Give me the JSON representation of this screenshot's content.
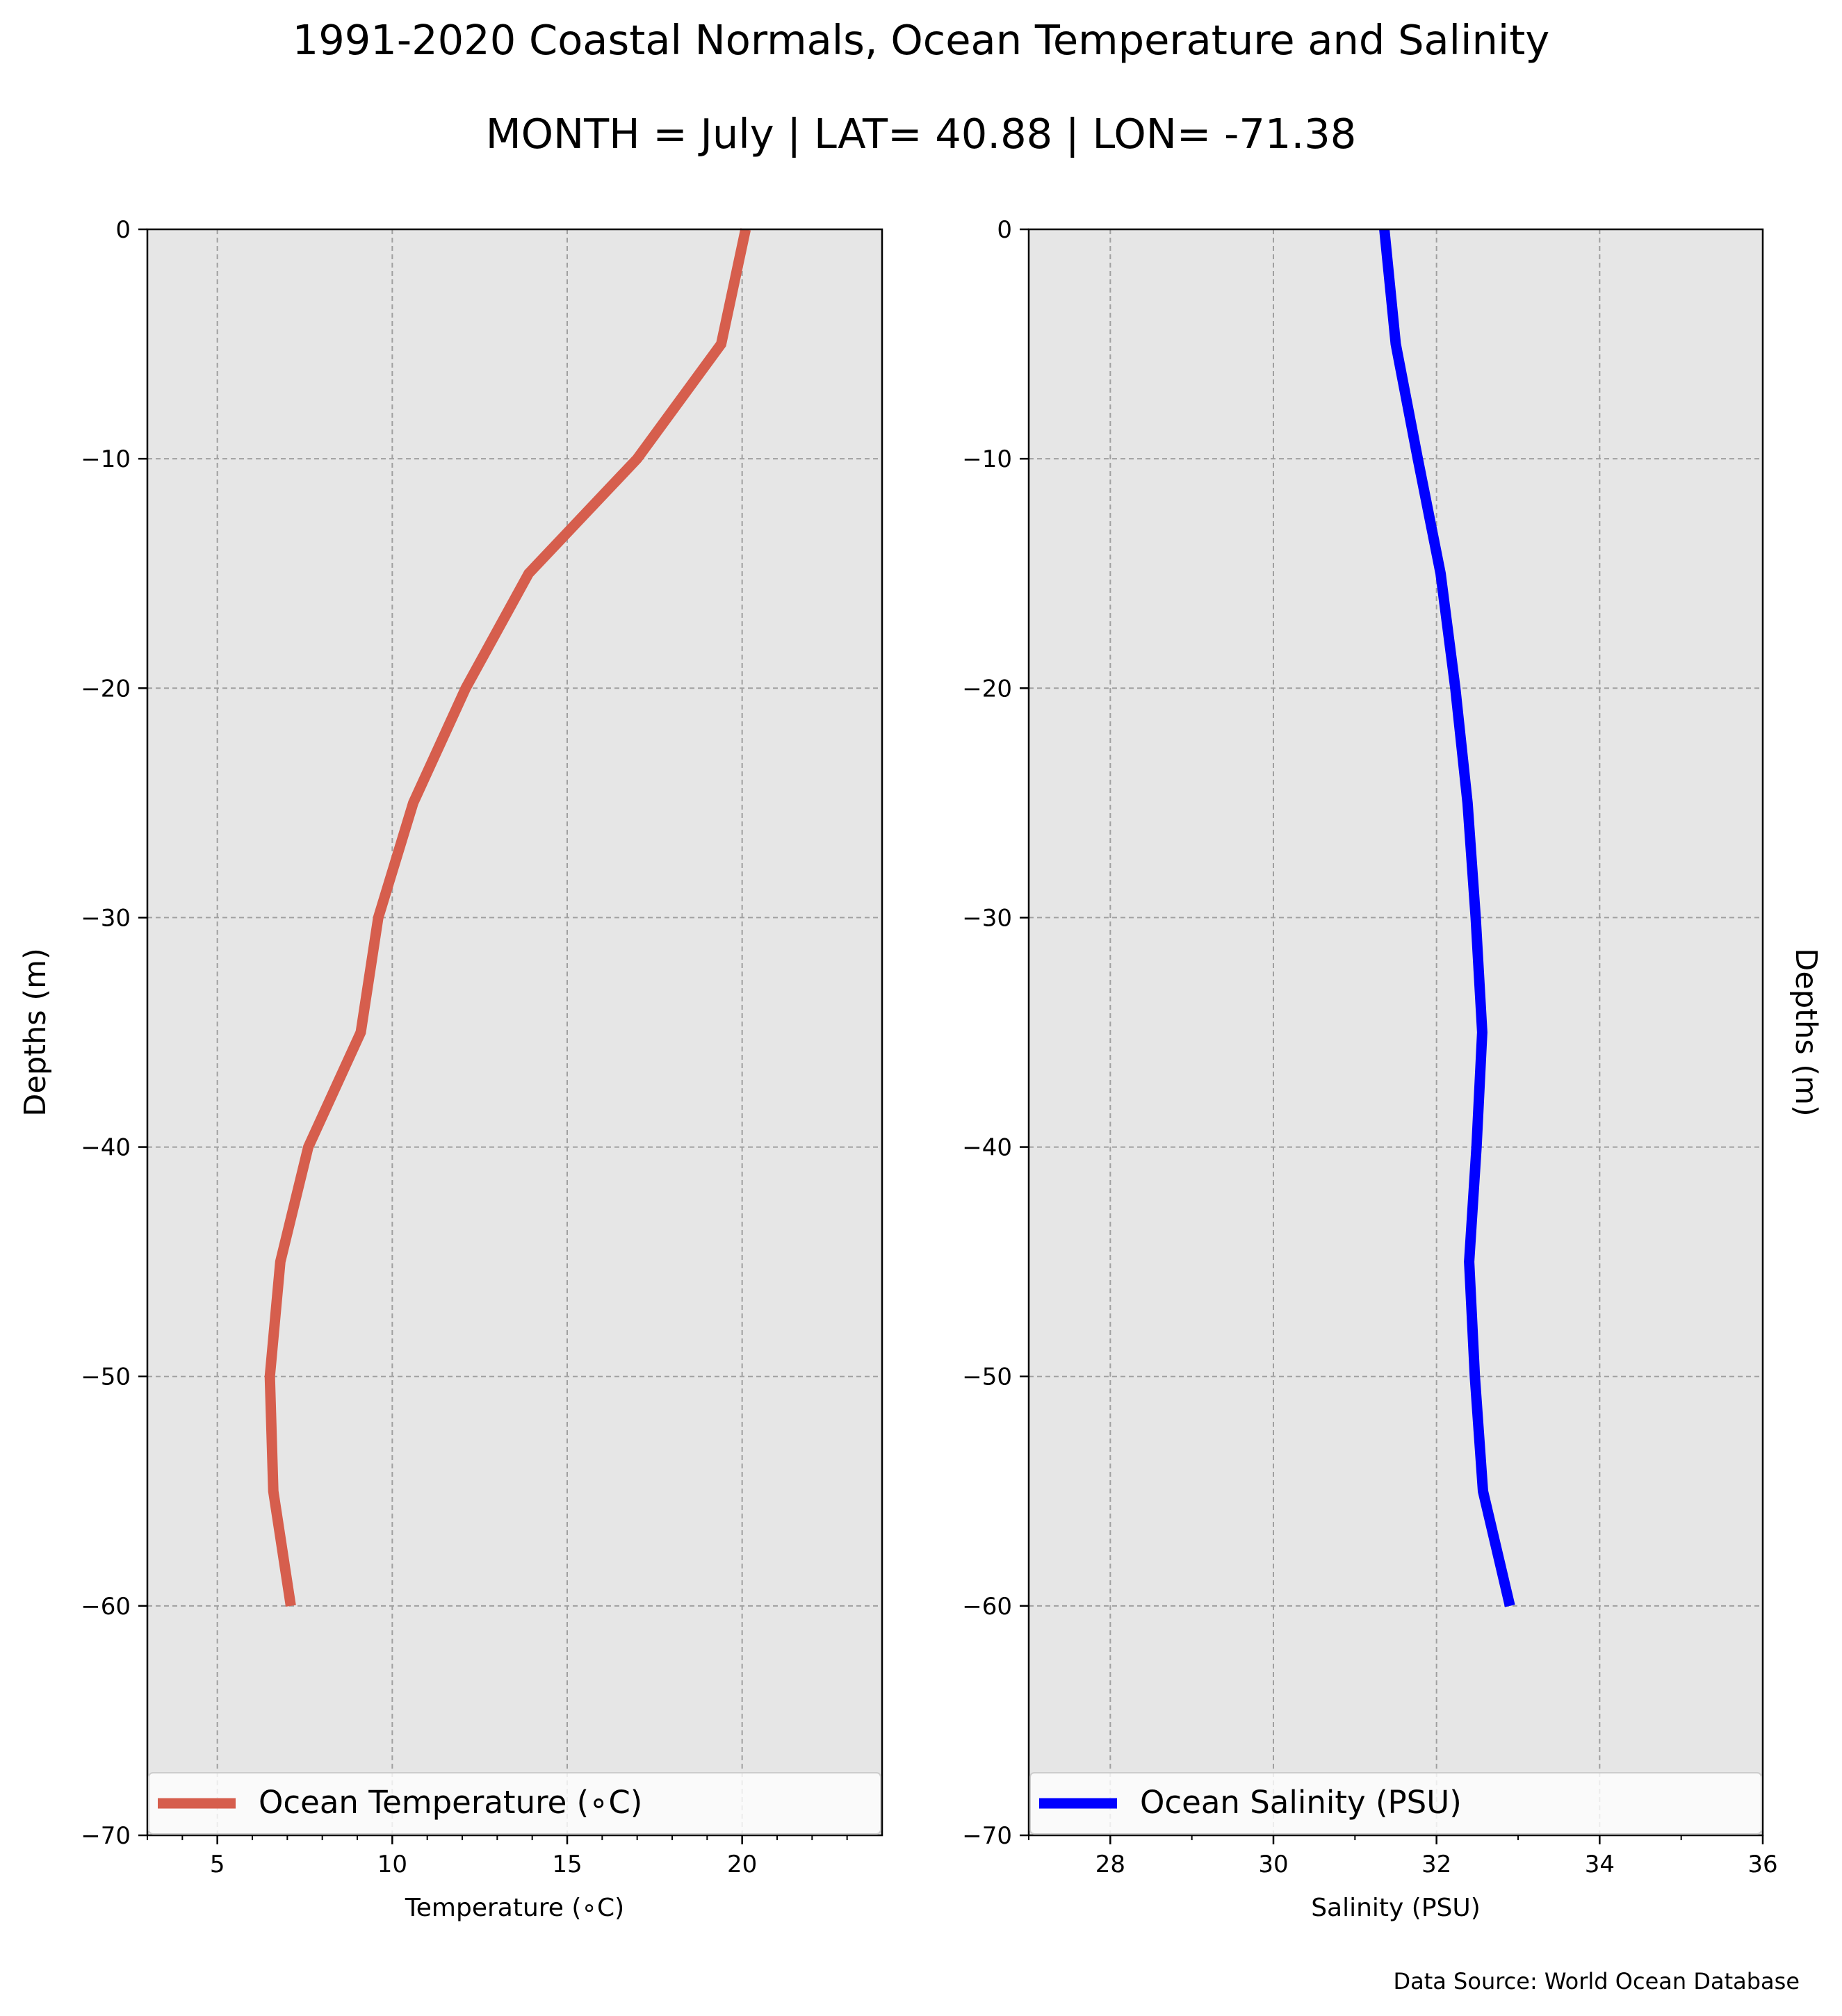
{
  "figure": {
    "title": "1991-2020 Coastal Normals, Ocean Temperature and Salinity",
    "subtitle": "MONTH = July | LAT= 40.88 | LON= -71.38",
    "source_note": "Data Source: World Ocean Database"
  },
  "chart_data": [
    {
      "type": "line",
      "orientation": "vertical-profile",
      "xlabel": "Temperature ($^\\circ$C)",
      "xlabel_display": "Temperature (∘C)",
      "ylabel": "Depths (m)",
      "ylabel_side": "left",
      "xlim": [
        3,
        24
      ],
      "ylim": [
        -70,
        0
      ],
      "xticks": [
        5,
        10,
        15,
        20
      ],
      "xtick_labels": [
        "5",
        "10",
        "15",
        "20"
      ],
      "xminor_ticks": [
        3,
        4,
        6,
        7,
        8,
        9,
        11,
        12,
        13,
        14,
        16,
        17,
        18,
        19,
        21,
        22,
        23
      ],
      "yticks": [
        0,
        -10,
        -20,
        -30,
        -40,
        -50,
        -60,
        -70
      ],
      "ytick_labels": [
        "0",
        "−10",
        "−20",
        "−30",
        "−40",
        "−50",
        "−60",
        "−70"
      ],
      "grid": true,
      "legend_position": "bottom",
      "background": "#e6e6e6",
      "series": [
        {
          "name": "Ocean Temperature (∘C)",
          "color": "#d65e4d",
          "x": [
            20.1,
            19.4,
            17.0,
            13.9,
            12.1,
            10.6,
            9.6,
            9.1,
            7.6,
            6.8,
            6.5,
            6.6,
            7.1
          ],
          "y": [
            0,
            -5,
            -10,
            -15,
            -20,
            -25,
            -30,
            -35,
            -40,
            -45,
            -50,
            -55,
            -60
          ]
        }
      ]
    },
    {
      "type": "line",
      "orientation": "vertical-profile",
      "xlabel": "Salinity (PSU)",
      "ylabel": "Depths (m)",
      "ylabel_side": "right",
      "xlim": [
        27,
        36
      ],
      "ylim": [
        -70,
        0
      ],
      "xticks": [
        28,
        30,
        32,
        34,
        36
      ],
      "xtick_labels": [
        "28",
        "30",
        "32",
        "34",
        "36"
      ],
      "xminor_ticks": [
        27,
        29,
        31,
        33,
        35
      ],
      "yticks": [
        0,
        -10,
        -20,
        -30,
        -40,
        -50,
        -60,
        -70
      ],
      "ytick_labels": [
        "0",
        "−10",
        "−20",
        "−30",
        "−40",
        "−50",
        "−60",
        "−70"
      ],
      "grid": true,
      "legend_position": "bottom",
      "background": "#e6e6e6",
      "series": [
        {
          "name": "Ocean Salinity (PSU)",
          "color": "#0000ff",
          "x": [
            31.36,
            31.5,
            31.77,
            32.05,
            32.23,
            32.38,
            32.48,
            32.56,
            32.49,
            32.4,
            32.47,
            32.57,
            32.9
          ],
          "y": [
            0,
            -5,
            -10,
            -15,
            -20,
            -25,
            -30,
            -35,
            -40,
            -45,
            -50,
            -55,
            -60
          ]
        }
      ]
    }
  ]
}
